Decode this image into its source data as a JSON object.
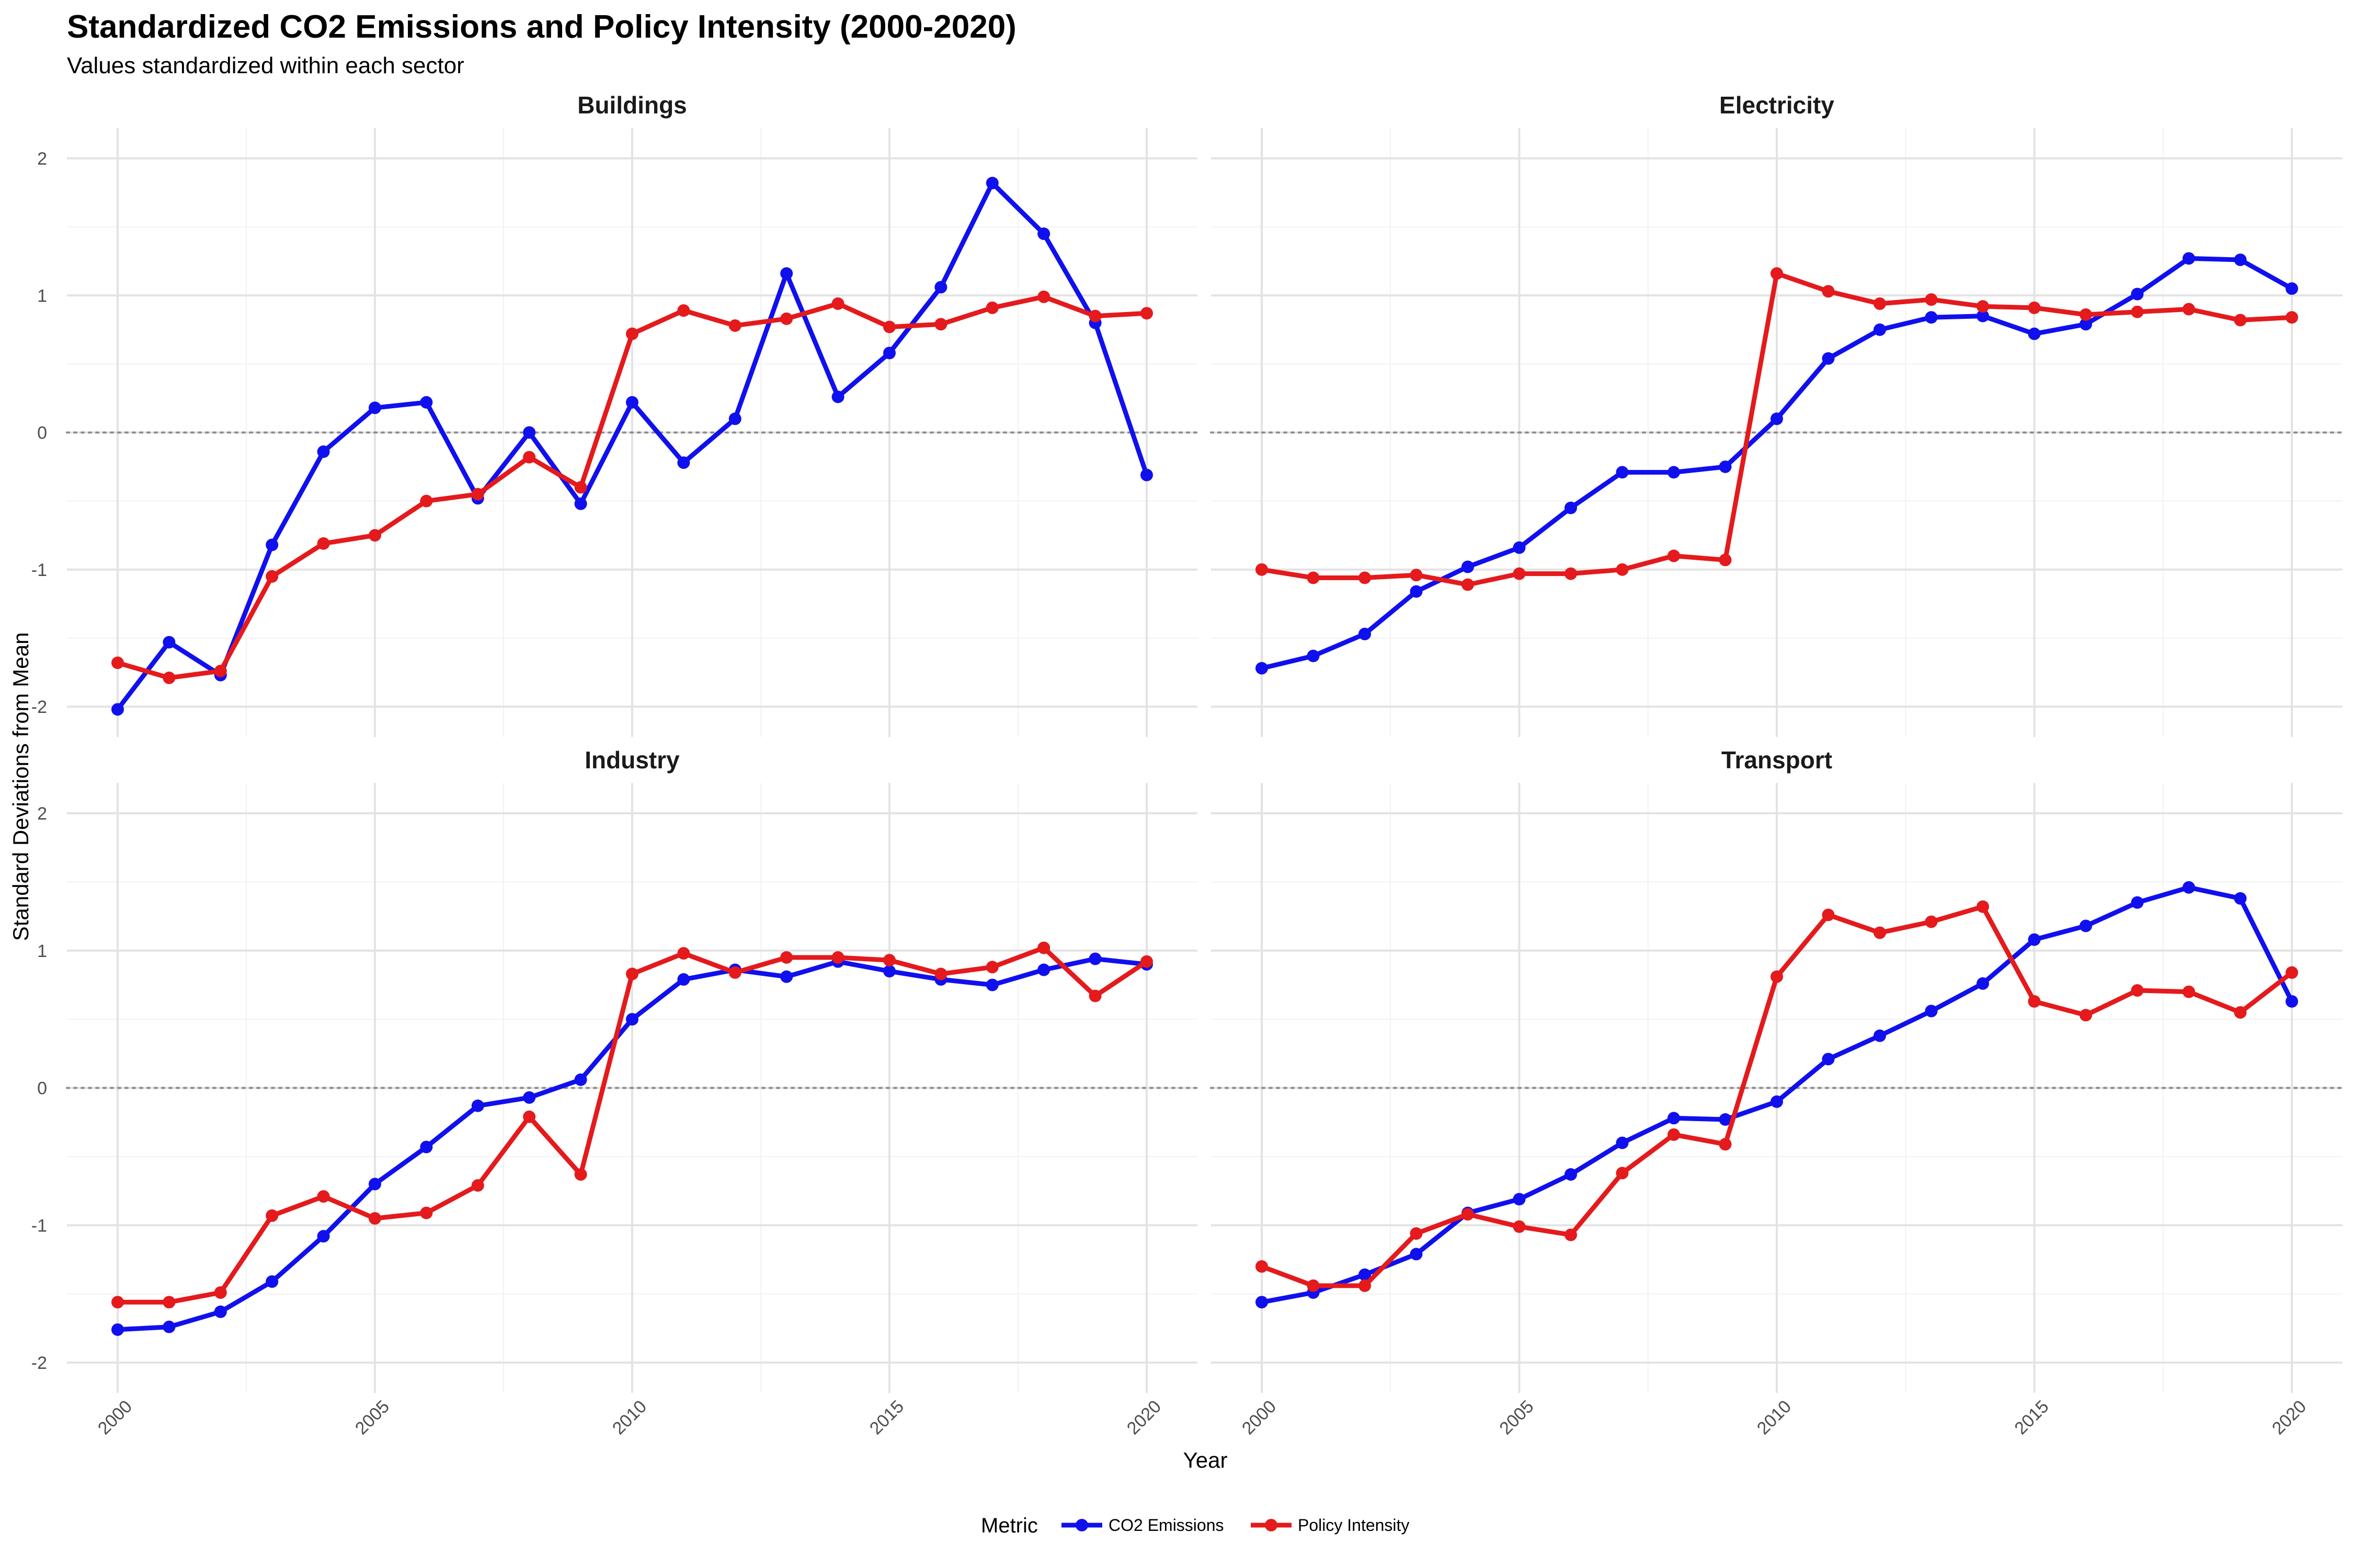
{
  "chart_data": {
    "type": "line",
    "title": "Standardized CO2 Emissions and Policy Intensity (2000-2020)",
    "subtitle": "Values standardized within each sector",
    "xlabel": "Year",
    "ylabel": "Standard Deviations from Mean",
    "xlim": [
      2000,
      2020
    ],
    "ylim": [
      -2,
      2
    ],
    "x_ticks": [
      2000,
      2005,
      2010,
      2015,
      2020
    ],
    "y_ticks": [
      -2,
      -1,
      0,
      1,
      2
    ],
    "grid": true,
    "reference_line": {
      "y": 0,
      "style": "dotted"
    },
    "legend": {
      "title": "Metric",
      "placement": "bottom",
      "entries": [
        "CO2 Emissions",
        "Policy Intensity"
      ]
    },
    "series_colors": {
      "CO2 Emissions": "#1010EE",
      "Policy Intensity": "#E41A1C"
    },
    "years": [
      2000,
      2001,
      2002,
      2003,
      2004,
      2005,
      2006,
      2007,
      2008,
      2009,
      2010,
      2011,
      2012,
      2013,
      2014,
      2015,
      2016,
      2017,
      2018,
      2019,
      2020
    ],
    "panels": [
      {
        "title": "Buildings",
        "series": [
          {
            "name": "CO2 Emissions",
            "values": [
              -2.02,
              -1.53,
              -1.77,
              -0.82,
              -0.14,
              0.18,
              0.22,
              -0.48,
              0.0,
              -0.52,
              0.22,
              -0.22,
              0.1,
              1.16,
              0.26,
              0.58,
              1.06,
              1.82,
              1.45,
              0.8,
              -0.31
            ]
          },
          {
            "name": "Policy Intensity",
            "values": [
              -1.68,
              -1.79,
              -1.74,
              -1.05,
              -0.81,
              -0.75,
              -0.5,
              -0.45,
              -0.18,
              -0.4,
              0.72,
              0.89,
              0.78,
              0.83,
              0.94,
              0.77,
              0.79,
              0.91,
              0.99,
              0.85,
              0.87
            ]
          }
        ]
      },
      {
        "title": "Electricity",
        "series": [
          {
            "name": "CO2 Emissions",
            "values": [
              -1.72,
              -1.63,
              -1.47,
              -1.16,
              -0.98,
              -0.84,
              -0.55,
              -0.29,
              -0.29,
              -0.25,
              0.1,
              0.54,
              0.75,
              0.84,
              0.85,
              0.72,
              0.79,
              1.01,
              1.27,
              1.26,
              1.05
            ]
          },
          {
            "name": "Policy Intensity",
            "values": [
              -1.0,
              -1.06,
              -1.06,
              -1.04,
              -1.11,
              -1.03,
              -1.03,
              -1.0,
              -0.9,
              -0.93,
              1.16,
              1.03,
              0.94,
              0.97,
              0.92,
              0.91,
              0.86,
              0.88,
              0.9,
              0.82,
              0.84
            ]
          }
        ]
      },
      {
        "title": "Industry",
        "series": [
          {
            "name": "CO2 Emissions",
            "values": [
              -1.76,
              -1.74,
              -1.63,
              -1.41,
              -1.08,
              -0.7,
              -0.43,
              -0.13,
              -0.07,
              0.06,
              0.5,
              0.79,
              0.86,
              0.81,
              0.92,
              0.85,
              0.79,
              0.75,
              0.86,
              0.94,
              0.9
            ]
          },
          {
            "name": "Policy Intensity",
            "values": [
              -1.56,
              -1.56,
              -1.49,
              -0.93,
              -0.79,
              -0.95,
              -0.91,
              -0.71,
              -0.21,
              -0.63,
              0.83,
              0.98,
              0.84,
              0.95,
              0.95,
              0.93,
              0.83,
              0.88,
              1.02,
              0.67,
              0.92
            ]
          }
        ]
      },
      {
        "title": "Transport",
        "series": [
          {
            "name": "CO2 Emissions",
            "values": [
              -1.56,
              -1.49,
              -1.36,
              -1.21,
              -0.91,
              -0.81,
              -0.63,
              -0.4,
              -0.22,
              -0.23,
              -0.1,
              0.21,
              0.38,
              0.56,
              0.76,
              1.08,
              1.18,
              1.35,
              1.46,
              1.38,
              0.63
            ]
          },
          {
            "name": "Policy Intensity",
            "values": [
              -1.3,
              -1.44,
              -1.44,
              -1.06,
              -0.92,
              -1.01,
              -1.07,
              -0.62,
              -0.34,
              -0.41,
              0.81,
              1.26,
              1.13,
              1.21,
              1.32,
              0.63,
              0.53,
              0.71,
              0.7,
              0.55,
              0.84
            ]
          }
        ]
      }
    ]
  }
}
